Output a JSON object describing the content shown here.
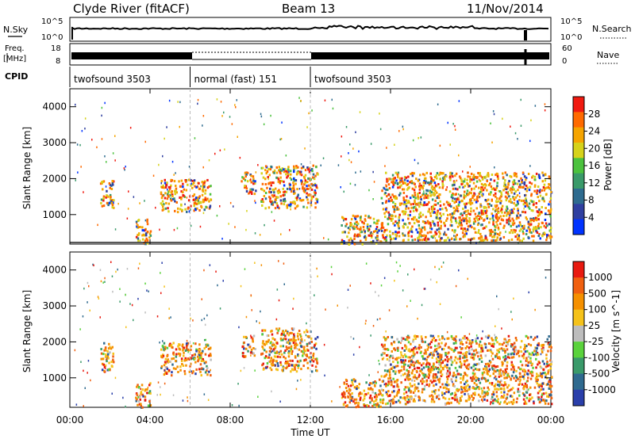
{
  "header": {
    "station": "Clyde River (fitACF)",
    "beam": "Beam 13",
    "date": "11/Nov/2014"
  },
  "nsky_panel": {
    "left_label": "N.Sky",
    "left_ticks": [
      "10^5",
      "10^0"
    ],
    "right_ticks": [
      "10^5",
      "10^0"
    ],
    "right_label": "N.Search"
  },
  "freq_panel": {
    "left_label_1": "Freq.",
    "left_label_2": "[MHz]",
    "left_ticks": [
      "18",
      "8"
    ],
    "right_ticks": [
      "60",
      "0"
    ],
    "right_label": "Nave"
  },
  "cpid": {
    "label": "CPID",
    "segments": [
      {
        "name": "twofsound 3503",
        "start": 0,
        "end": 6
      },
      {
        "name": "normal (fast) 151",
        "start": 6,
        "end": 12
      },
      {
        "name": "twofsound 3503",
        "start": 12,
        "end": 24
      }
    ]
  },
  "time_axis": {
    "label": "Time UT",
    "ticks": [
      "00:00",
      "04:00",
      "08:00",
      "12:00",
      "16:00",
      "20:00",
      "00:00"
    ]
  },
  "chart_data": [
    {
      "type": "heatmap",
      "name": "power",
      "xlabel": "Time UT",
      "ylabel": "Slant Range [km]",
      "y_ticks": [
        "1000",
        "2000",
        "3000",
        "4000"
      ],
      "xlim": [
        "00:00",
        "24:00"
      ],
      "ylim": [
        180,
        4500
      ],
      "colorbar": {
        "label": "Power [dB]",
        "ticks": [
          "28",
          "24",
          "20",
          "16",
          "12",
          "8",
          "4"
        ],
        "colors": [
          "#0033ff",
          "#2f3fa0",
          "#2e6b8f",
          "#3a9a6a",
          "#4cc23e",
          "#d6d21a",
          "#f5a400",
          "#ff6a00",
          "#f01a10"
        ]
      },
      "echo_regions": [
        {
          "start": "01:30",
          "end": "02:10",
          "range_min": 1200,
          "range_max": 2000,
          "typical": 14
        },
        {
          "start": "03:15",
          "end": "04:00",
          "range_min": 200,
          "range_max": 900,
          "typical": 24
        },
        {
          "start": "04:30",
          "end": "07:00",
          "range_min": 1100,
          "range_max": 2000,
          "typical": 18
        },
        {
          "start": "08:30",
          "end": "09:15",
          "range_min": 1600,
          "range_max": 2200,
          "typical": 8
        },
        {
          "start": "09:30",
          "end": "12:20",
          "range_min": 1200,
          "range_max": 2400,
          "typical": 14
        },
        {
          "start": "13:30",
          "end": "15:30",
          "range_min": 200,
          "range_max": 1000,
          "typical": 12
        },
        {
          "start": "15:30",
          "end": "24:00",
          "range_min": 300,
          "range_max": 2200,
          "typical": 22
        }
      ]
    },
    {
      "type": "heatmap",
      "name": "velocity",
      "xlabel": "Time UT",
      "ylabel": "Slant Range [km]",
      "y_ticks": [
        "1000",
        "2000",
        "3000",
        "4000"
      ],
      "xlim": [
        "00:00",
        "24:00"
      ],
      "ylim": [
        180,
        4500
      ],
      "colorbar": {
        "label": "Velocity [m s^-1]",
        "ticks": [
          "1000",
          "500",
          "100",
          "25",
          "-25",
          "-100",
          "-500",
          "-1000"
        ],
        "colors": [
          "#2a3faa",
          "#2f6a8f",
          "#3a9a6a",
          "#5ad23c",
          "#bdbdbd",
          "#f5c21a",
          "#f59000",
          "#f06010",
          "#e81a10"
        ]
      },
      "echo_regions": [
        {
          "start": "01:30",
          "end": "02:10",
          "range_min": 1200,
          "range_max": 2000,
          "typical": -200
        },
        {
          "start": "03:15",
          "end": "04:00",
          "range_min": 200,
          "range_max": 900,
          "typical": 50
        },
        {
          "start": "04:30",
          "end": "07:00",
          "range_min": 1100,
          "range_max": 2000,
          "typical": -150
        },
        {
          "start": "08:30",
          "end": "09:15",
          "range_min": 1600,
          "range_max": 2200,
          "typical": -300
        },
        {
          "start": "09:30",
          "end": "12:20",
          "range_min": 1200,
          "range_max": 2400,
          "typical": 200
        },
        {
          "start": "13:30",
          "end": "15:30",
          "range_min": 200,
          "range_max": 1000,
          "typical": 200
        },
        {
          "start": "15:30",
          "end": "24:00",
          "range_min": 300,
          "range_max": 2200,
          "typical": -200
        }
      ]
    }
  ]
}
